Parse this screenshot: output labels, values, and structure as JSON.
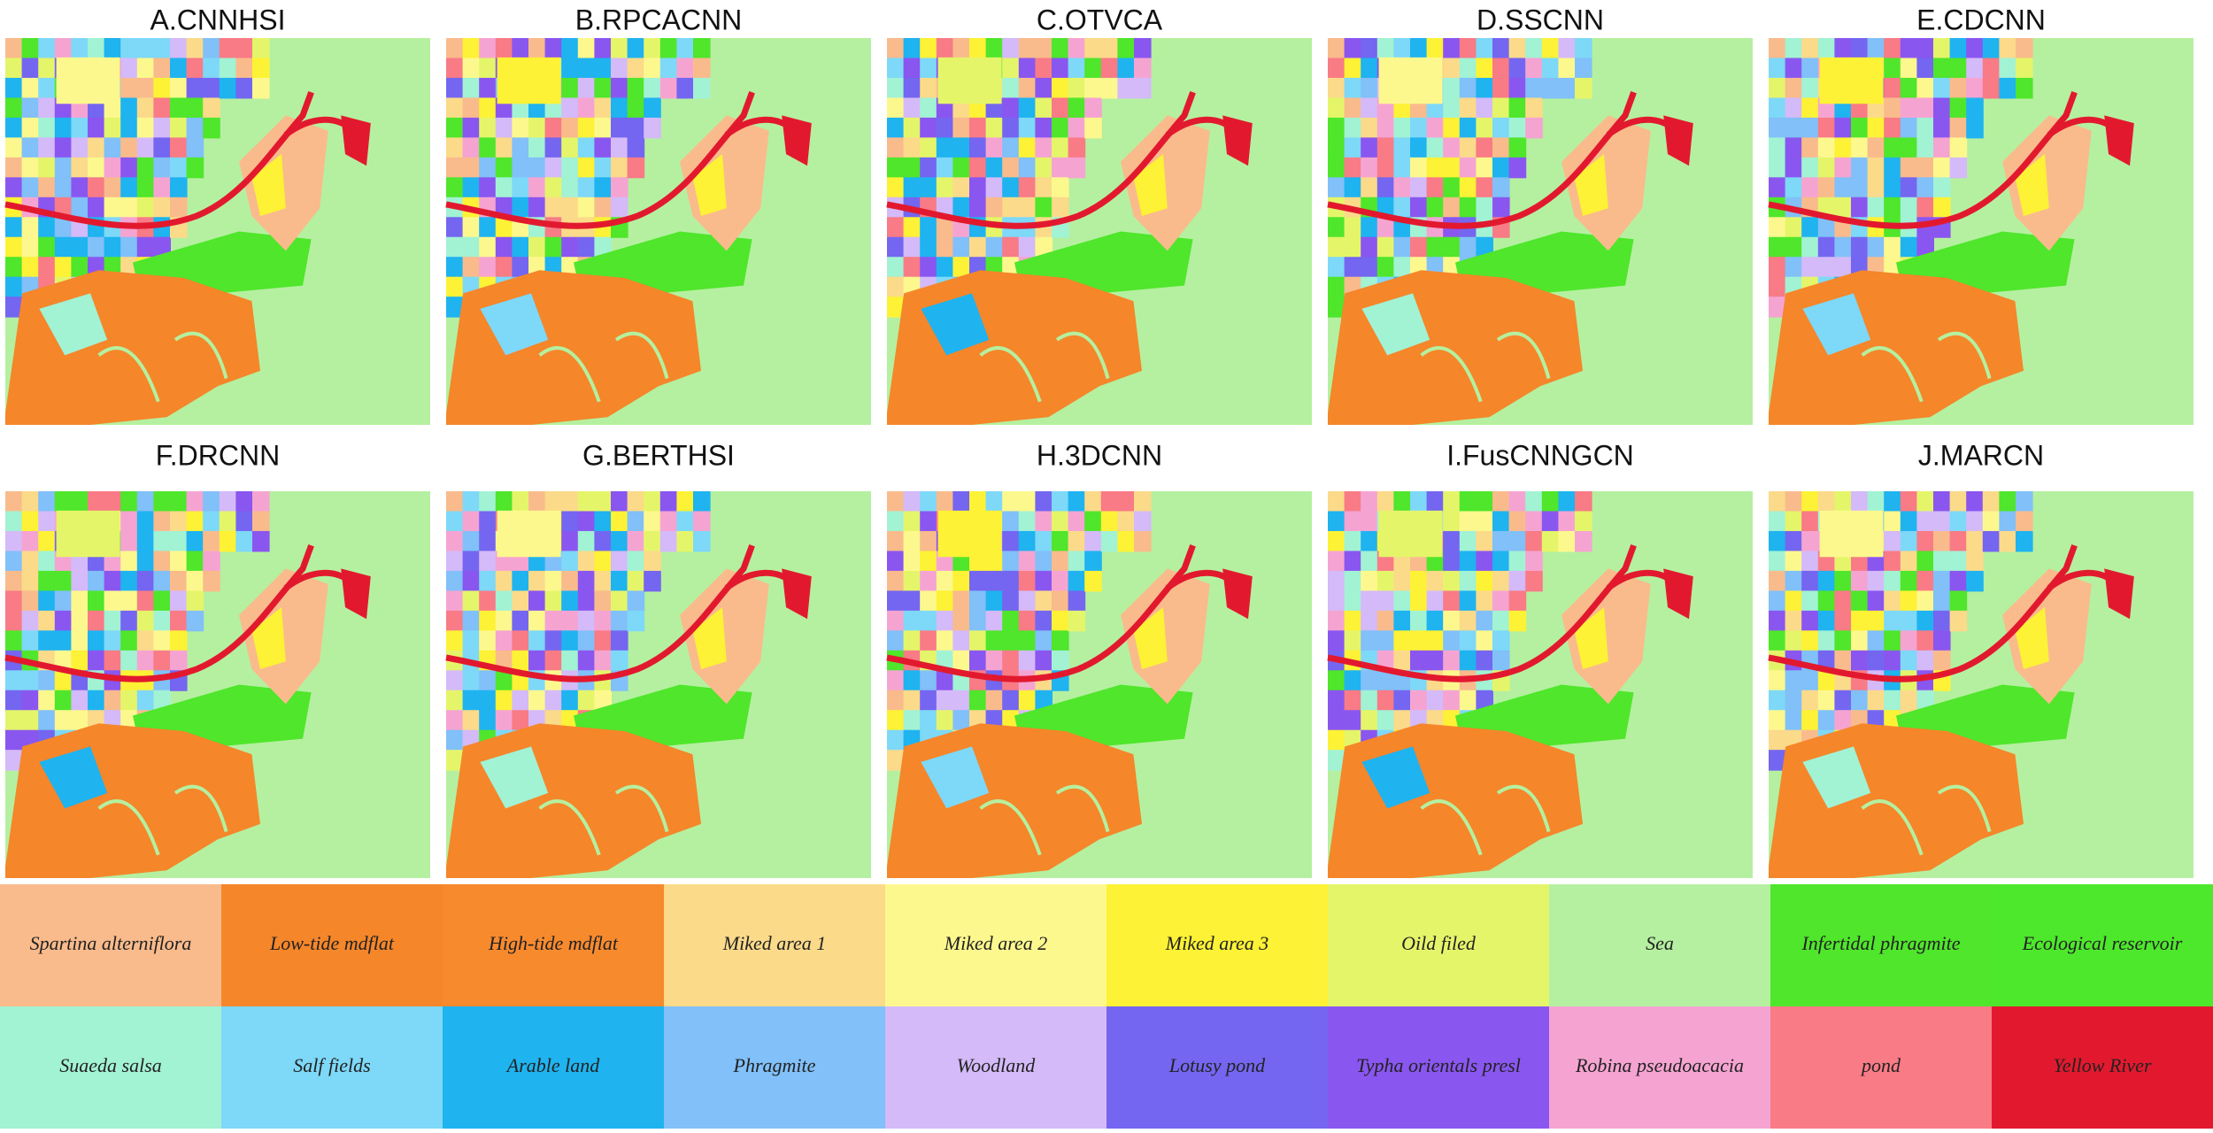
{
  "panels": [
    {
      "title": "A.CNNHSI"
    },
    {
      "title": "B.RPCACNN"
    },
    {
      "title": "C.OTVCA"
    },
    {
      "title": "D.SSCNN"
    },
    {
      "title": "E.CDCNN"
    },
    {
      "title": "F.DRCNN"
    },
    {
      "title": "G.BERTHSI"
    },
    {
      "title": "H.3DCNN"
    },
    {
      "title": "I.FusCNNGCN"
    },
    {
      "title": "J.MARCN"
    }
  ],
  "legend": [
    {
      "label": "Spartina alterniflora",
      "color": "#f9bb8c"
    },
    {
      "label": "Low-tide mdflat",
      "color": "#f5862a"
    },
    {
      "label": "High-tide mdflat",
      "color": "#f88a2e"
    },
    {
      "label": "Miked area 1",
      "color": "#fbda8a"
    },
    {
      "label": "Miked area 2",
      "color": "#fdf88e"
    },
    {
      "label": "Miked area 3",
      "color": "#fdf235"
    },
    {
      "label": "Oild filed",
      "color": "#e5f56a"
    },
    {
      "label": "Sea",
      "color": "#b5f0a0"
    },
    {
      "label": "Infertidal phragmite",
      "color": "#4fe62b"
    },
    {
      "label": "Ecological reservoir",
      "color": "#4de82c"
    },
    {
      "label": "Suaeda salsa",
      "color": "#a2f2d4"
    },
    {
      "label": "Salf fields",
      "color": "#7ed8f8"
    },
    {
      "label": "Arable land",
      "color": "#1fb3f0"
    },
    {
      "label": "Phragmite",
      "color": "#81c0f8"
    },
    {
      "label": "Woodland",
      "color": "#d4baf8"
    },
    {
      "label": "Lotusy pond",
      "color": "#7466f0"
    },
    {
      "label": "Typha orientals presl",
      "color": "#8a56f0"
    },
    {
      "label": "Robina pseudoacacia",
      "color": "#f5a4d2"
    },
    {
      "label": "pond",
      "color": "#f87b86"
    },
    {
      "label": "Yellow River",
      "color": "#e2192e"
    }
  ]
}
